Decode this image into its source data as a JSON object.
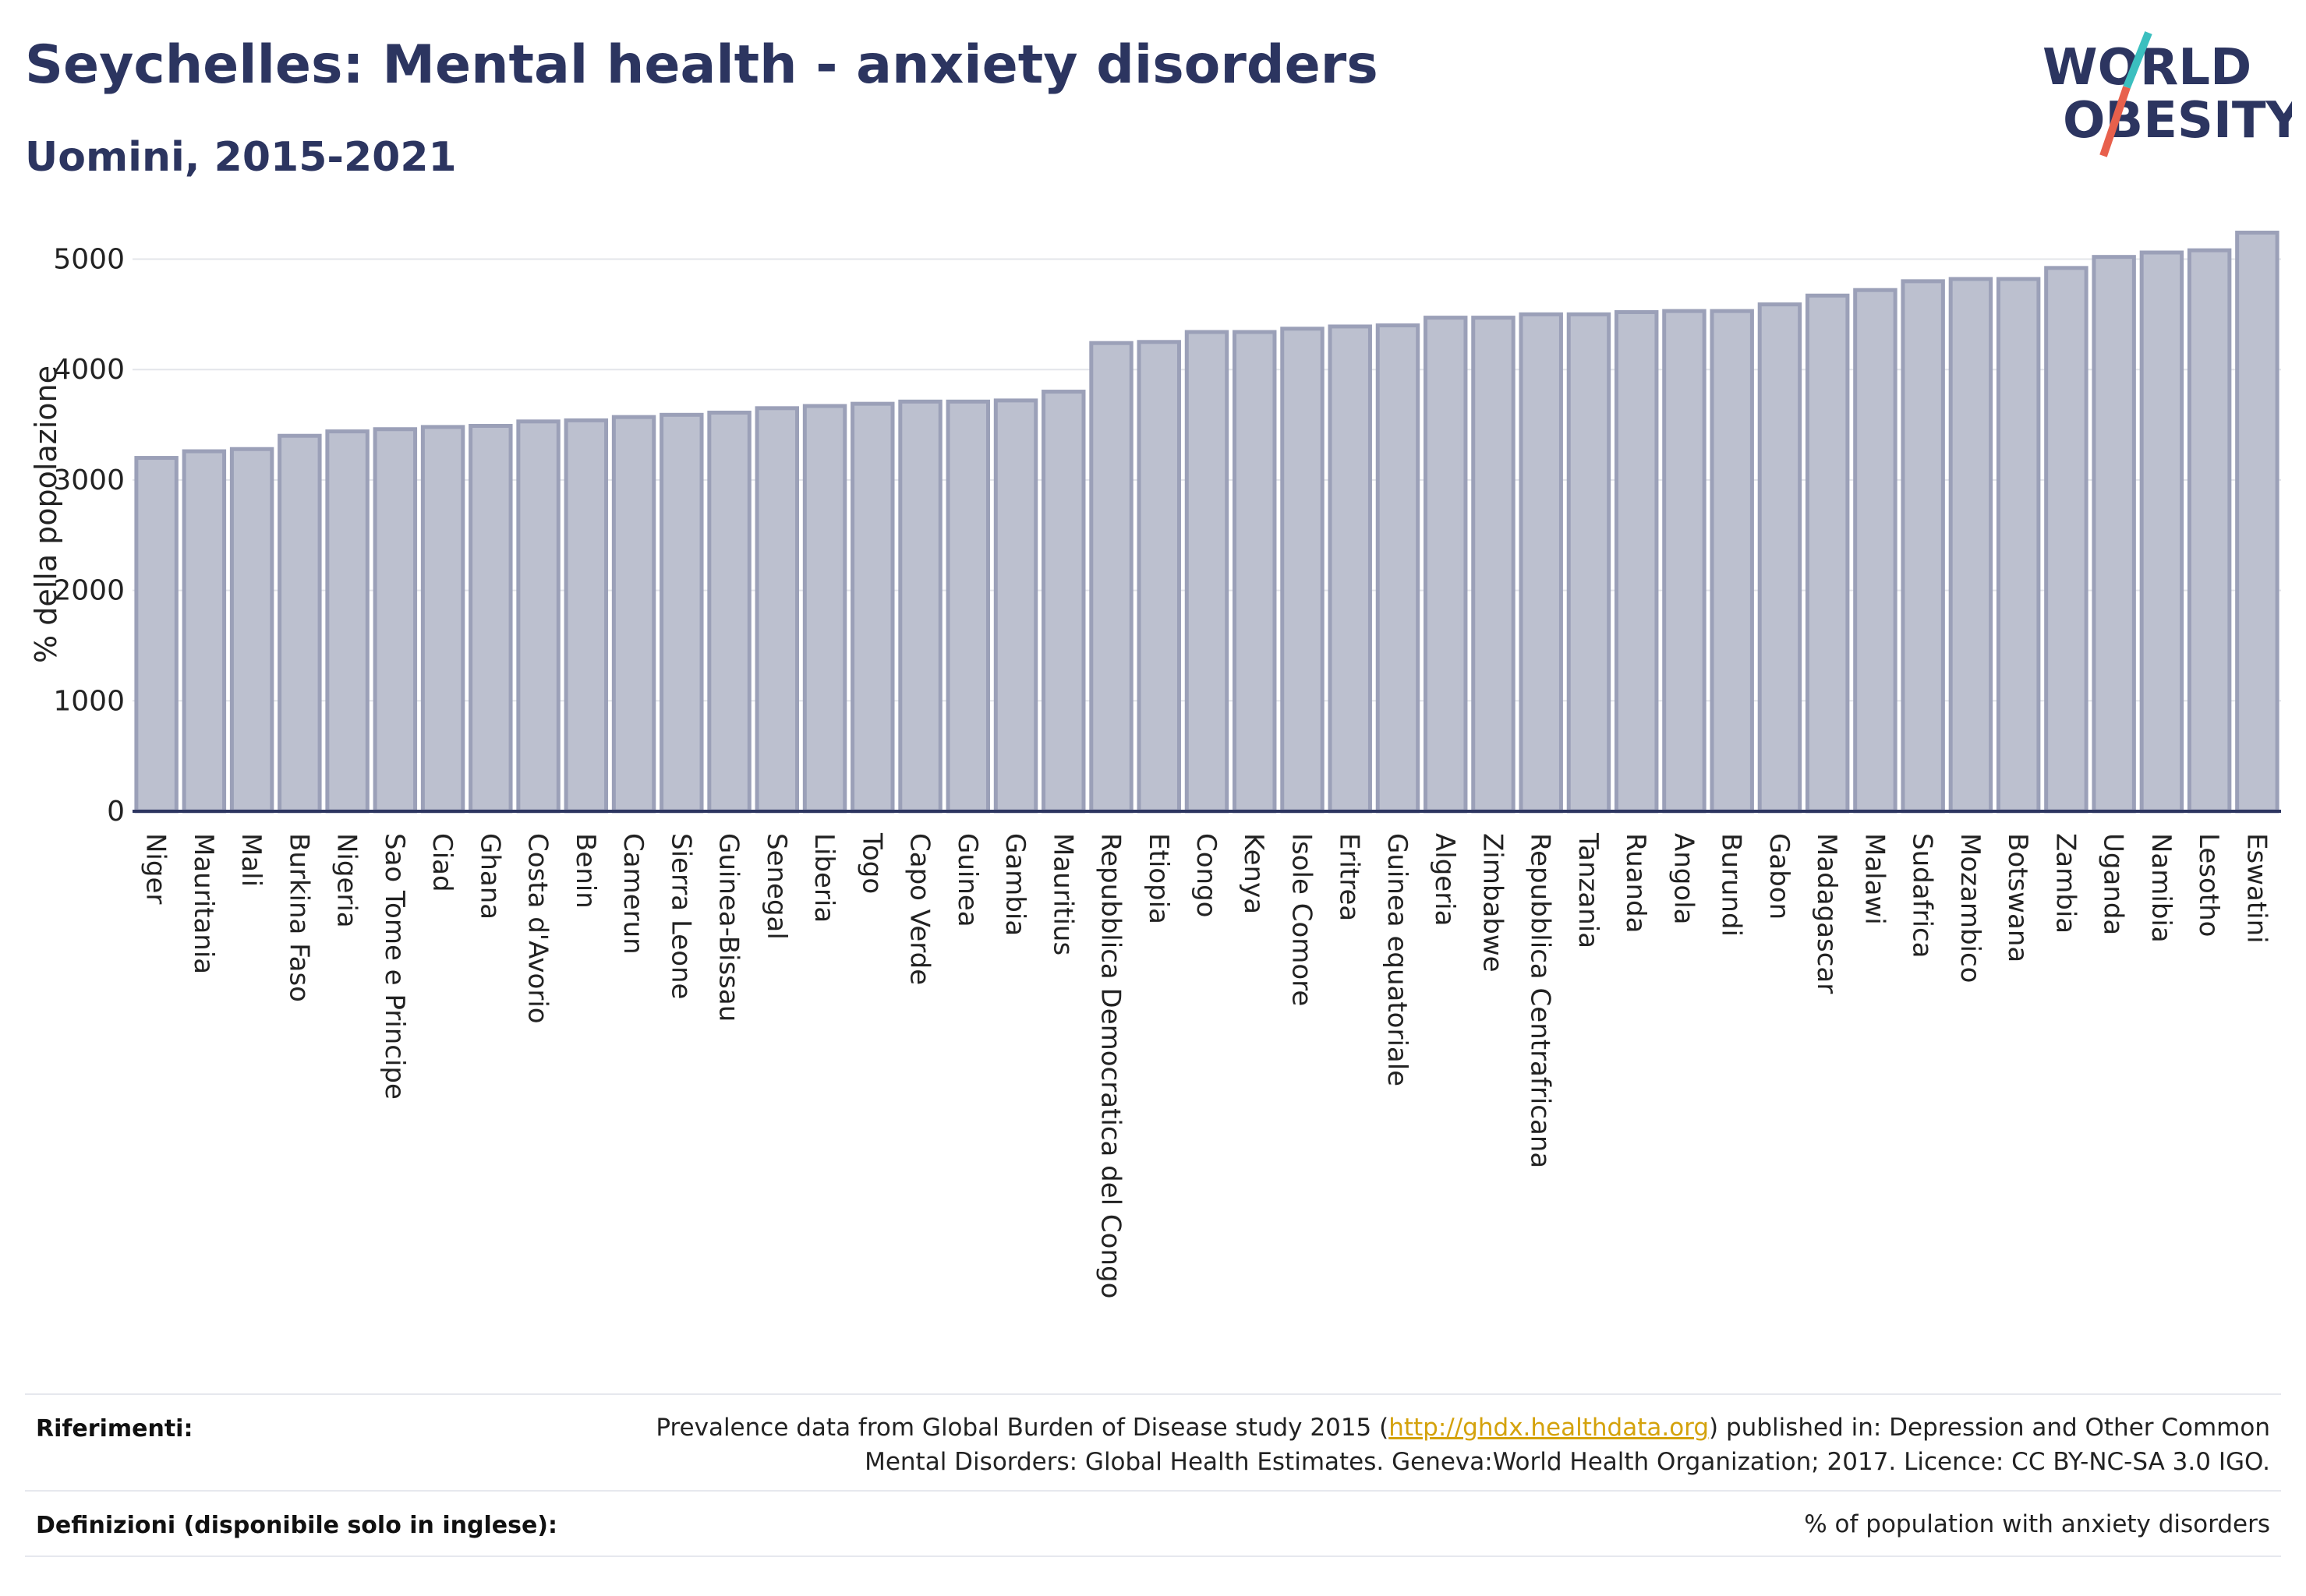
{
  "header": {
    "title": "Seychelles: Mental health - anxiety disorders",
    "subtitle": "Uomini, 2015-2021"
  },
  "logo": {
    "line1": "WORLD",
    "line2": "OBESITY",
    "colors": {
      "text": "#2c3560",
      "slash_teal": "#3bbfbf",
      "slash_red": "#e8604c"
    }
  },
  "chart_data": {
    "type": "bar",
    "ylabel": "% della popolazione",
    "ylim": [
      0,
      5300
    ],
    "yticks": [
      0,
      1000,
      2000,
      3000,
      4000,
      5000
    ],
    "grid": true,
    "colors": {
      "bar_fill": "#bcc0cf",
      "bar_stroke": "#9ba0b8",
      "axis": "#2c3560"
    },
    "categories": [
      "Niger",
      "Mauritania",
      "Mali",
      "Burkina Faso",
      "Nigeria",
      "Sao Tome e Principe",
      "Ciad",
      "Ghana",
      "Costa d'Avorio",
      "Benin",
      "Camerun",
      "Sierra Leone",
      "Guinea-Bissau",
      "Senegal",
      "Liberia",
      "Togo",
      "Capo Verde",
      "Guinea",
      "Gambia",
      "Mauritius",
      "Repubblica Democratica del Congo",
      "Etiopia",
      "Congo",
      "Kenya",
      "Isole Comore",
      "Eritrea",
      "Guinea equatoriale",
      "Algeria",
      "Zimbabwe",
      "Repubblica Centrafricana",
      "Tanzania",
      "Ruanda",
      "Angola",
      "Burundi",
      "Gabon",
      "Madagascar",
      "Malawi",
      "Sudafrica",
      "Mozambico",
      "Botswana",
      "Zambia",
      "Uganda",
      "Namibia",
      "Lesotho",
      "Eswatini"
    ],
    "values": [
      3200,
      3260,
      3280,
      3400,
      3440,
      3460,
      3480,
      3490,
      3530,
      3540,
      3570,
      3590,
      3610,
      3650,
      3670,
      3690,
      3710,
      3710,
      3720,
      3800,
      4240,
      4250,
      4340,
      4340,
      4370,
      4390,
      4400,
      4470,
      4470,
      4500,
      4500,
      4520,
      4530,
      4530,
      4590,
      4670,
      4720,
      4800,
      4820,
      4820,
      4920,
      5020,
      5060,
      5080,
      5240
    ]
  },
  "footer": {
    "references_label": "Riferimenti:",
    "references_line1_pre": "Prevalence data from Global Burden of Disease study 2015 (",
    "references_link": "http://ghdx.healthdata.org",
    "references_line1_post": ") published in: Depression and Other Common",
    "references_line2": "Mental Disorders: Global Health Estimates. Geneva:World Health Organization; 2017. Licence: CC BY-NC-SA 3.0 IGO.",
    "definitions_label": "Definizioni (disponibile solo in inglese):",
    "definitions_text": "% of population with anxiety disorders"
  }
}
